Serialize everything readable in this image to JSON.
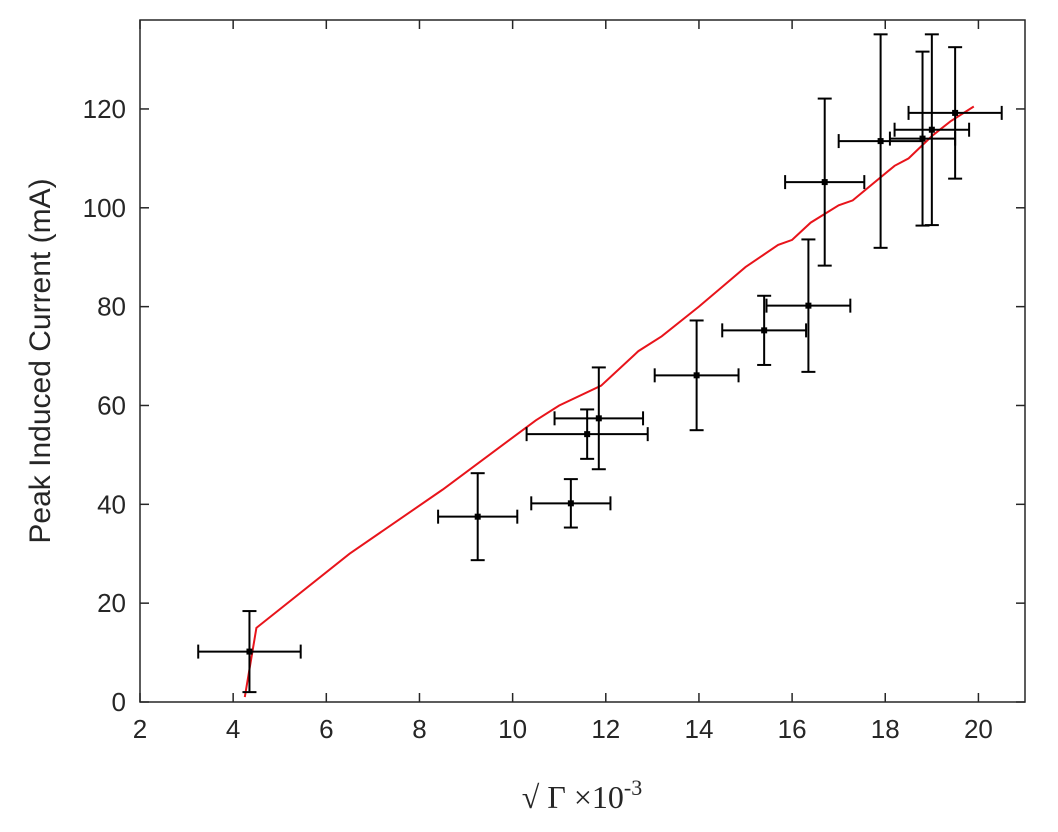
{
  "chart_data": {
    "type": "scatter",
    "title": "",
    "xlabel": "√ Γ ×10",
    "xlabel_exponent": "-3",
    "ylabel": "Peak Induced Current (mA)",
    "xlim": [
      2,
      21
    ],
    "ylim": [
      0,
      138
    ],
    "xticks": [
      2,
      4,
      6,
      8,
      10,
      12,
      14,
      16,
      18,
      20
    ],
    "yticks": [
      0,
      20,
      40,
      60,
      80,
      100,
      120
    ],
    "grid": false,
    "legend": "none",
    "colors": {
      "axis": "#262626",
      "data": "#000000",
      "fit": "#e8141b"
    },
    "series": [
      {
        "kind": "points_with_errorbars",
        "points": [
          {
            "x": 4.35,
            "y": 10.2,
            "xerr": 1.1,
            "yerr": 8.2
          },
          {
            "x": 9.25,
            "y": 37.5,
            "xerr": 0.85,
            "yerr": 8.8
          },
          {
            "x": 11.25,
            "y": 40.2,
            "xerr": 0.85,
            "yerr": 4.9
          },
          {
            "x": 11.6,
            "y": 54.2,
            "xerr": 1.3,
            "yerr": 5.0
          },
          {
            "x": 11.85,
            "y": 57.4,
            "xerr": 0.95,
            "yerr": 10.3
          },
          {
            "x": 13.95,
            "y": 66.1,
            "xerr": 0.9,
            "yerr": 11.1
          },
          {
            "x": 15.4,
            "y": 75.2,
            "xerr": 0.9,
            "yerr": 7.0
          },
          {
            "x": 16.35,
            "y": 80.2,
            "xerr": 0.9,
            "yerr": 13.4
          },
          {
            "x": 16.7,
            "y": 105.2,
            "xerr": 0.85,
            "yerr": 16.9
          },
          {
            "x": 17.9,
            "y": 113.5,
            "xerr": 0.9,
            "yerr": 21.6
          },
          {
            "x": 18.8,
            "y": 114.0,
            "xerr": 0.7,
            "yerr": 17.6
          },
          {
            "x": 19.0,
            "y": 115.8,
            "xerr": 0.8,
            "yerr": 19.3
          },
          {
            "x": 19.5,
            "y": 119.2,
            "xerr": 1.0,
            "yerr": 13.3
          }
        ]
      },
      {
        "kind": "line",
        "x": [
          4.25,
          4.5,
          6.5,
          8.5,
          10.5,
          11.0,
          11.9,
          12.7,
          13.2,
          14.0,
          14.5,
          15.0,
          15.7,
          16.0,
          16.4,
          17.0,
          17.3,
          18.2,
          18.5,
          19.0,
          19.4,
          19.9
        ],
        "y": [
          1.0,
          15.0,
          30.0,
          43.0,
          57.0,
          60.0,
          64.0,
          71.0,
          74.0,
          80.0,
          84.0,
          88.0,
          92.5,
          93.5,
          97.0,
          100.5,
          101.5,
          108.5,
          110.0,
          114.5,
          117.5,
          120.5
        ]
      }
    ]
  }
}
